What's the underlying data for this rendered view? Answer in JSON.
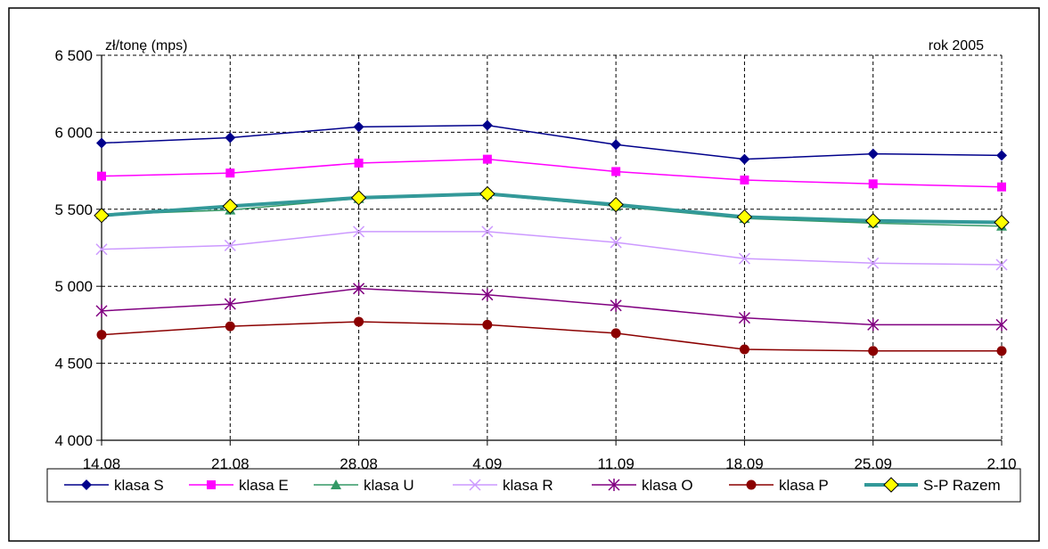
{
  "chart_data": {
    "type": "line",
    "title": "",
    "unit_label": "zł/tonę (mps)",
    "year_label": "rok 2005",
    "xlabel": "",
    "ylabel": "",
    "categories": [
      "14.08",
      "21.08",
      "28.08",
      "4.09",
      "11.09",
      "18.09",
      "25.09",
      "2.10"
    ],
    "ylim": [
      4000,
      6500
    ],
    "yticks": [
      4000,
      4500,
      5000,
      5500,
      6000,
      6500
    ],
    "ytick_labels": [
      "4 000",
      "4 500",
      "5 000",
      "5 500",
      "6 000",
      "6 500"
    ],
    "grid": true,
    "legend_position": "bottom",
    "series": [
      {
        "name": "klasa S",
        "color": "#00008b",
        "marker": "diamond",
        "values": [
          5930,
          5965,
          6035,
          6045,
          5920,
          5825,
          5860,
          5850
        ]
      },
      {
        "name": "klasa E",
        "color": "#ff00ff",
        "marker": "square",
        "values": [
          5715,
          5735,
          5800,
          5825,
          5745,
          5690,
          5665,
          5645
        ]
      },
      {
        "name": "klasa U",
        "color": "#339966",
        "marker": "triangle",
        "values": [
          5465,
          5495,
          5570,
          5595,
          5520,
          5440,
          5410,
          5390
        ]
      },
      {
        "name": "klasa R",
        "color": "#cc99ff",
        "marker": "x",
        "values": [
          5240,
          5265,
          5355,
          5355,
          5285,
          5180,
          5150,
          5140
        ]
      },
      {
        "name": "klasa O",
        "color": "#800080",
        "marker": "star",
        "values": [
          4840,
          4885,
          4985,
          4945,
          4875,
          4795,
          4750,
          4750
        ]
      },
      {
        "name": "klasa P",
        "color": "#8b0000",
        "marker": "circle",
        "values": [
          4685,
          4740,
          4770,
          4750,
          4695,
          4590,
          4580,
          4580
        ]
      },
      {
        "name": "S-P Razem",
        "color": "#339999",
        "marker": "diamond-yellow",
        "values": [
          5460,
          5520,
          5575,
          5600,
          5530,
          5450,
          5425,
          5415
        ]
      }
    ]
  }
}
